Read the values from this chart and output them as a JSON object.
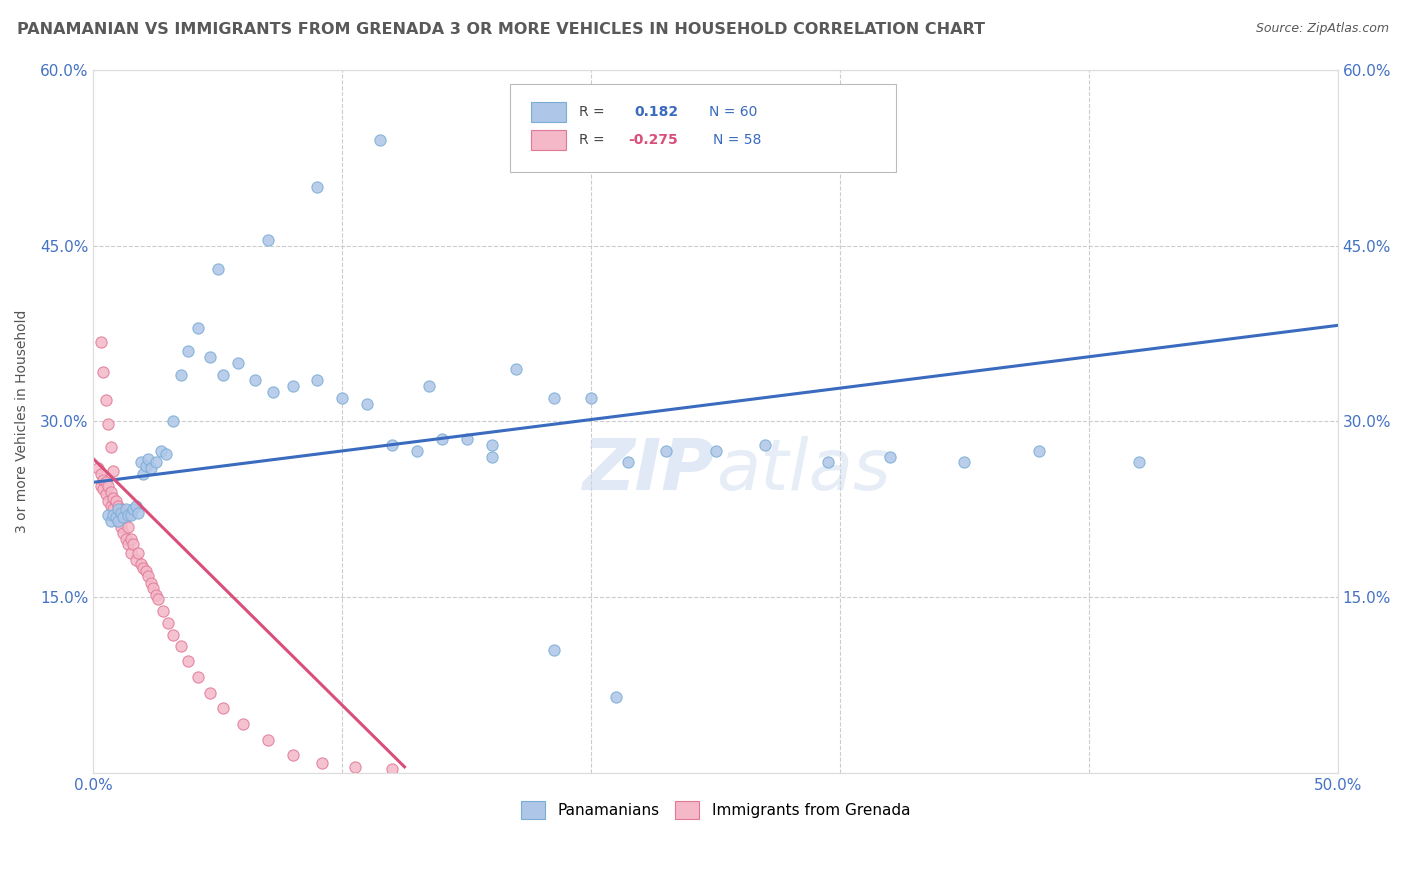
{
  "title": "PANAMANIAN VS IMMIGRANTS FROM GRENADA 3 OR MORE VEHICLES IN HOUSEHOLD CORRELATION CHART",
  "source": "Source: ZipAtlas.com",
  "ylabel": "3 or more Vehicles in Household",
  "xmin": 0.0,
  "xmax": 0.5,
  "ymin": 0.0,
  "ymax": 0.6,
  "color_blue": "#aec6e8",
  "color_pink": "#f4b8c8",
  "color_blue_edge": "#7aadd4",
  "color_pink_edge": "#e07898",
  "color_blue_line": "#3a6bbf",
  "color_pink_line": "#d94f7a",
  "color_title": "#595959",
  "color_source": "#595959",
  "color_tick": "#4472c4",
  "watermark": "ZIPatlas",
  "blue_scatter_x": [
    0.006,
    0.007,
    0.008,
    0.009,
    0.01,
    0.01,
    0.011,
    0.012,
    0.013,
    0.014,
    0.015,
    0.016,
    0.017,
    0.018,
    0.019,
    0.02,
    0.021,
    0.022,
    0.023,
    0.025,
    0.027,
    0.029,
    0.032,
    0.035,
    0.038,
    0.042,
    0.047,
    0.052,
    0.058,
    0.065,
    0.072,
    0.08,
    0.09,
    0.1,
    0.11,
    0.12,
    0.13,
    0.14,
    0.15,
    0.16,
    0.17,
    0.185,
    0.2,
    0.215,
    0.23,
    0.25,
    0.27,
    0.295,
    0.32,
    0.35,
    0.38,
    0.42,
    0.05,
    0.07,
    0.09,
    0.115,
    0.135,
    0.16,
    0.185,
    0.21
  ],
  "blue_scatter_y": [
    0.22,
    0.215,
    0.22,
    0.218,
    0.215,
    0.225,
    0.222,
    0.218,
    0.225,
    0.22,
    0.22,
    0.225,
    0.228,
    0.222,
    0.265,
    0.255,
    0.262,
    0.268,
    0.26,
    0.265,
    0.275,
    0.272,
    0.3,
    0.34,
    0.36,
    0.38,
    0.355,
    0.34,
    0.35,
    0.335,
    0.325,
    0.33,
    0.335,
    0.32,
    0.315,
    0.28,
    0.275,
    0.285,
    0.285,
    0.28,
    0.345,
    0.32,
    0.32,
    0.265,
    0.275,
    0.275,
    0.28,
    0.265,
    0.27,
    0.265,
    0.275,
    0.265,
    0.43,
    0.455,
    0.5,
    0.54,
    0.33,
    0.27,
    0.105,
    0.065
  ],
  "pink_scatter_x": [
    0.002,
    0.003,
    0.003,
    0.004,
    0.004,
    0.005,
    0.005,
    0.006,
    0.006,
    0.007,
    0.007,
    0.008,
    0.008,
    0.009,
    0.009,
    0.01,
    0.01,
    0.011,
    0.011,
    0.012,
    0.012,
    0.013,
    0.013,
    0.014,
    0.014,
    0.015,
    0.015,
    0.016,
    0.017,
    0.018,
    0.019,
    0.02,
    0.021,
    0.022,
    0.023,
    0.024,
    0.025,
    0.026,
    0.028,
    0.03,
    0.032,
    0.035,
    0.038,
    0.042,
    0.047,
    0.052,
    0.06,
    0.07,
    0.08,
    0.092,
    0.105,
    0.12,
    0.003,
    0.004,
    0.005,
    0.006,
    0.007,
    0.008
  ],
  "pink_scatter_y": [
    0.26,
    0.255,
    0.245,
    0.25,
    0.242,
    0.248,
    0.238,
    0.245,
    0.232,
    0.24,
    0.228,
    0.235,
    0.225,
    0.232,
    0.22,
    0.228,
    0.215,
    0.225,
    0.21,
    0.22,
    0.205,
    0.218,
    0.2,
    0.21,
    0.195,
    0.2,
    0.188,
    0.195,
    0.182,
    0.188,
    0.178,
    0.175,
    0.172,
    0.168,
    0.162,
    0.158,
    0.152,
    0.148,
    0.138,
    0.128,
    0.118,
    0.108,
    0.095,
    0.082,
    0.068,
    0.055,
    0.042,
    0.028,
    0.015,
    0.008,
    0.005,
    0.003,
    0.368,
    0.342,
    0.318,
    0.298,
    0.278,
    0.258
  ],
  "blue_trendline_x": [
    0.0,
    0.5
  ],
  "blue_trendline_y": [
    0.248,
    0.382
  ],
  "pink_trendline_x": [
    0.0,
    0.125
  ],
  "pink_trendline_y": [
    0.268,
    0.005
  ]
}
